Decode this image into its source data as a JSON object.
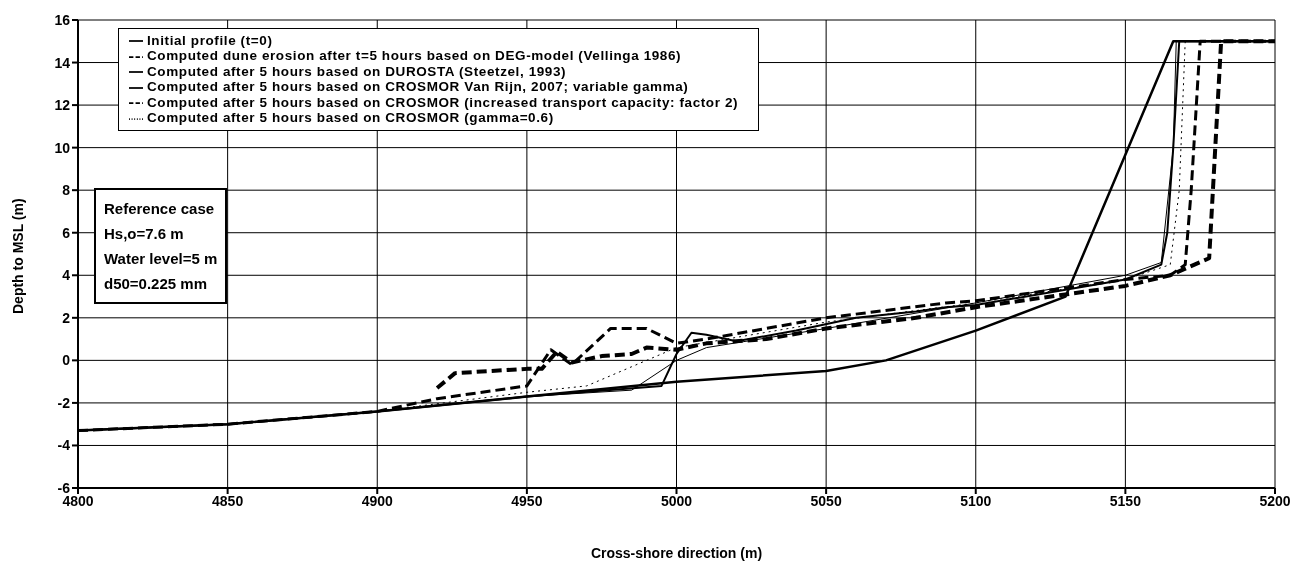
{
  "chart_data": {
    "type": "line",
    "xlabel": "Cross-shore direction (m)",
    "ylabel": "Depth to MSL (m)",
    "xlim": [
      4800,
      5200
    ],
    "xticks": [
      4800,
      4850,
      4900,
      4950,
      5000,
      5050,
      5100,
      5150,
      5200
    ],
    "ylim": [
      -6,
      16
    ],
    "yticks": [
      -6,
      -4,
      -2,
      0,
      2,
      4,
      6,
      8,
      10,
      12,
      14,
      16
    ],
    "grid": true,
    "legend": "top left",
    "marker": "none",
    "annotations": [
      "Reference case",
      "Hs,o=7.6 m",
      "Water level=5 m",
      "d50=0.225 mm"
    ],
    "series": [
      {
        "name": "Initial profile (t=0)",
        "color": "#000000",
        "line_style": "solid",
        "x": [
          4800,
          4850,
          4900,
          4950,
          5000,
          5050,
          5070,
          5100,
          5130,
          5166,
          5200
        ],
        "values": [
          -3.3,
          -3.0,
          -2.4,
          -1.7,
          -1.0,
          -0.5,
          0,
          1.4,
          3.0,
          15,
          15
        ]
      },
      {
        "name": "Computed dune erosion after t=5 hours based on DEG-model (Vellinga 1986)",
        "color": "#000000",
        "line_style": "dashed",
        "x": [
          4920,
          4926,
          4950,
          4955,
          4960,
          4965,
          4975,
          4985,
          4990,
          5000,
          5010,
          5030,
          5050,
          5080,
          5100,
          5150,
          5165,
          5178,
          5182,
          5200
        ],
        "values": [
          -1.3,
          -0.6,
          -0.4,
          -0.4,
          0.4,
          -0.1,
          0.2,
          0.3,
          0.6,
          0.5,
          0.8,
          1.0,
          1.5,
          2.0,
          2.5,
          3.5,
          4.0,
          4.8,
          15,
          15
        ]
      },
      {
        "name": "Computed after 5 hours based on DUROSTA (Steetzel, 1993)",
        "color": "#000000",
        "line_style": "solid",
        "x": [
          4800,
          4850,
          4900,
          4950,
          4985,
          5000,
          5010,
          5050,
          5100,
          5150,
          5162,
          5166,
          5167,
          5200
        ],
        "values": [
          -3.3,
          -3.0,
          -2.4,
          -1.7,
          -1.4,
          0.0,
          0.6,
          1.5,
          2.7,
          4.0,
          4.6,
          10,
          15,
          15
        ]
      },
      {
        "name": "Computed after 5 hours based on CROSMOR Van Rijn, 2007; variable gamma)",
        "color": "#000000",
        "line_style": "solid",
        "x": [
          4800,
          4850,
          4900,
          4950,
          4995,
          5000,
          5005,
          5010,
          5020,
          5040,
          5060,
          5080,
          5090,
          5100,
          5150,
          5162,
          5164,
          5166,
          5168,
          5200
        ],
        "values": [
          -3.3,
          -3.0,
          -2.4,
          -1.7,
          -1.2,
          0.3,
          1.3,
          1.2,
          0.9,
          1.4,
          2.0,
          2.3,
          2.5,
          2.6,
          3.8,
          4.5,
          6,
          10,
          15,
          15
        ]
      },
      {
        "name": "Computed after 5 hours based on CROSMOR (increased transport capacity: factor 2)",
        "color": "#000000",
        "line_style": "dashed",
        "x": [
          4800,
          4850,
          4900,
          4920,
          4950,
          4958,
          4965,
          4978,
          4990,
          5000,
          5010,
          5050,
          5090,
          5100,
          5150,
          5165,
          5170,
          5172,
          5175,
          5200
        ],
        "values": [
          -3.3,
          -3.0,
          -2.4,
          -1.8,
          -1.2,
          0.5,
          -0.2,
          1.5,
          1.5,
          0.8,
          1.0,
          2.0,
          2.7,
          2.8,
          3.8,
          4.0,
          4.5,
          8,
          15,
          15
        ]
      },
      {
        "name": "Computed after 5 hours based on CROSMOR (gamma=0.6)",
        "color": "#000000",
        "line_style": "dotted",
        "x": [
          4800,
          4850,
          4900,
          4950,
          4970,
          4990,
          5000,
          5050,
          5100,
          5150,
          5165,
          5168,
          5170,
          5200
        ],
        "values": [
          -3.3,
          -3.0,
          -2.4,
          -1.5,
          -1.2,
          0,
          0.6,
          1.8,
          2.7,
          3.8,
          4.5,
          8,
          15,
          15
        ]
      }
    ]
  }
}
